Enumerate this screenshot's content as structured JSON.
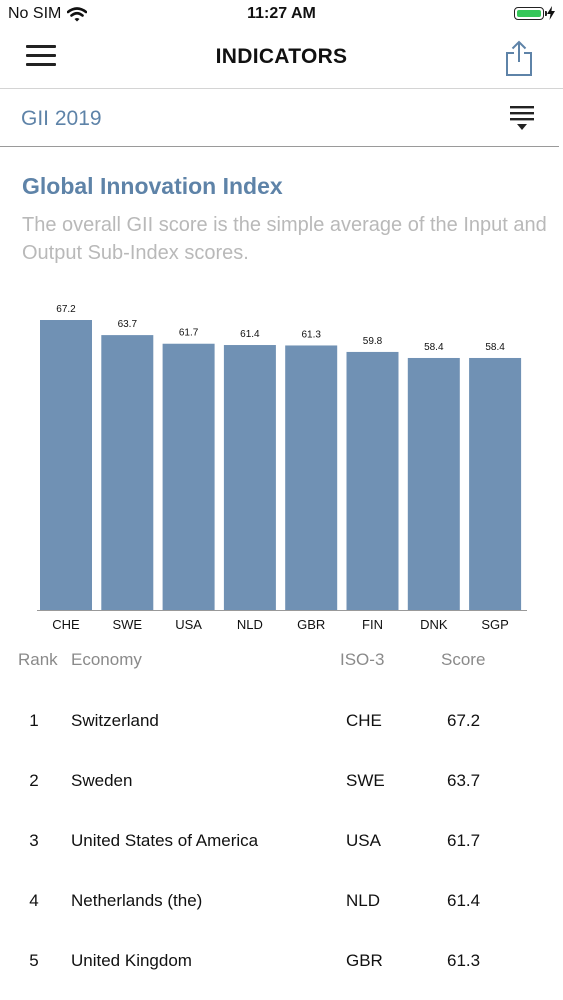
{
  "status_bar": {
    "carrier": "No SIM",
    "time": "11:27 AM"
  },
  "nav": {
    "title": "INDICATORS"
  },
  "filter": {
    "label": "GII 2019"
  },
  "section": {
    "title": "Global Innovation Index",
    "description": "The overall GII score is the simple average of the Input and Output Sub-Index scores."
  },
  "colors": {
    "accent": "#5e83a8",
    "bar": "#7091b4",
    "battery": "#35c759"
  },
  "chart_data": {
    "type": "bar",
    "categories": [
      "CHE",
      "SWE",
      "USA",
      "NLD",
      "GBR",
      "FIN",
      "DNK",
      "SGP"
    ],
    "values": [
      67.2,
      63.7,
      61.7,
      61.4,
      61.3,
      59.8,
      58.4,
      58.4
    ],
    "data_labels": [
      "67.2",
      "63.7",
      "61.7",
      "61.4",
      "61.3",
      "59.8",
      "58.4",
      "58.4"
    ],
    "ylim": [
      0,
      67.2
    ],
    "grid": false
  },
  "table": {
    "headers": {
      "rank": "Rank",
      "economy": "Economy",
      "iso": "ISO-3",
      "score": "Score"
    },
    "rows": [
      {
        "rank": "1",
        "economy": "Switzerland",
        "iso": "CHE",
        "score": "67.2"
      },
      {
        "rank": "2",
        "economy": "Sweden",
        "iso": "SWE",
        "score": "63.7"
      },
      {
        "rank": "3",
        "economy": "United States of America",
        "iso": "USA",
        "score": "61.7"
      },
      {
        "rank": "4",
        "economy": "Netherlands (the)",
        "iso": "NLD",
        "score": "61.4"
      },
      {
        "rank": "5",
        "economy": "United Kingdom",
        "iso": "GBR",
        "score": "61.3"
      }
    ]
  }
}
